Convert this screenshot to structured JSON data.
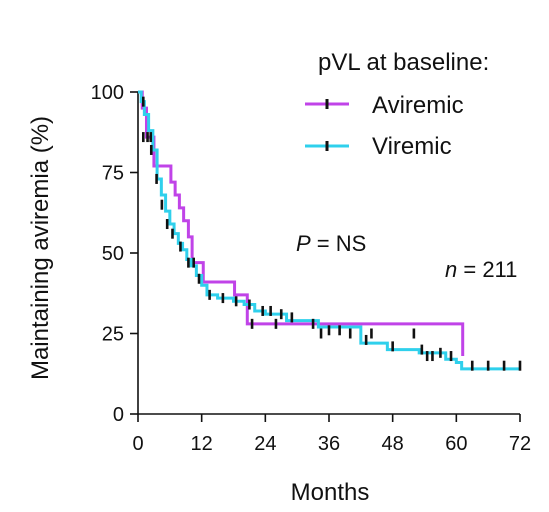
{
  "chart_data": {
    "type": "line",
    "step": true,
    "xlabel": "Months",
    "ylabel": "Maintaining aviremia (%)",
    "xlim": [
      0,
      72
    ],
    "ylim": [
      0,
      100
    ],
    "xticks": [
      0,
      12,
      24,
      36,
      48,
      60,
      72
    ],
    "yticks": [
      0,
      25,
      50,
      75,
      100
    ],
    "grid": false,
    "legend": {
      "title": "pVL at baseline:",
      "placement": "top-right",
      "entries": [
        "Aviremic",
        "Viremic"
      ]
    },
    "annotations": {
      "p_italic": "P",
      "p_rest": " = NS",
      "n_italic": "n",
      "n_rest": " = 211"
    },
    "series": [
      {
        "name": "Aviremic",
        "color": "#c043e8",
        "x": [
          0,
          0.8,
          1.6,
          3.0,
          6.2,
          7.0,
          7.8,
          8.6,
          9.5,
          10.2,
          12.3,
          18.2,
          20.6,
          61.2
        ],
        "y": [
          100,
          95,
          86,
          77,
          72,
          68,
          64,
          60,
          55,
          47,
          41,
          37,
          28,
          18
        ],
        "end": 61.2,
        "censors": [
          [
            1.0,
            86
          ],
          [
            1.8,
            86
          ],
          [
            2.4,
            86
          ],
          [
            10.5,
            47
          ],
          [
            21.5,
            28
          ],
          [
            26.0,
            28
          ],
          [
            34.5,
            25
          ],
          [
            44.0,
            25
          ],
          [
            52.0,
            25
          ],
          [
            54.5,
            18
          ],
          [
            55.5,
            18
          ]
        ]
      },
      {
        "name": "Viremic",
        "color": "#2fd0ec",
        "x": [
          0,
          0.6,
          1.2,
          2.0,
          2.8,
          3.6,
          4.4,
          5.2,
          6.0,
          6.8,
          7.6,
          8.4,
          9.2,
          10.0,
          11.0,
          12.0,
          13.0,
          15.0,
          18.0,
          20.0,
          22.0,
          24.0,
          28.0,
          34.0,
          42.0,
          47.0,
          53.0,
          58.0,
          60.0,
          61.0
        ],
        "y": [
          100,
          97,
          93,
          88,
          82,
          73,
          68,
          63,
          59,
          56,
          53,
          51,
          48,
          46,
          43,
          40,
          37,
          36,
          35,
          34,
          32,
          31,
          29,
          27,
          22,
          20,
          19,
          17,
          16,
          14
        ],
        "end": 72,
        "censors": [
          [
            1.0,
            97
          ],
          [
            2.5,
            82
          ],
          [
            3.5,
            73
          ],
          [
            4.5,
            65
          ],
          [
            5.5,
            59
          ],
          [
            6.5,
            56
          ],
          [
            8.0,
            52
          ],
          [
            9.5,
            47
          ],
          [
            11.5,
            42
          ],
          [
            13.5,
            37
          ],
          [
            16.0,
            36
          ],
          [
            18.5,
            35
          ],
          [
            21.0,
            34
          ],
          [
            23.5,
            32
          ],
          [
            25.0,
            32
          ],
          [
            27.0,
            31
          ],
          [
            29.0,
            30
          ],
          [
            33.0,
            28
          ],
          [
            36.0,
            26
          ],
          [
            38.0,
            26
          ],
          [
            40.0,
            25
          ],
          [
            43.0,
            23
          ],
          [
            48.0,
            21
          ],
          [
            53.5,
            20
          ],
          [
            57.0,
            19
          ],
          [
            59.0,
            18
          ],
          [
            63.0,
            15
          ],
          [
            66.0,
            15
          ],
          [
            69.0,
            15
          ],
          [
            72.0,
            15
          ]
        ]
      }
    ]
  }
}
